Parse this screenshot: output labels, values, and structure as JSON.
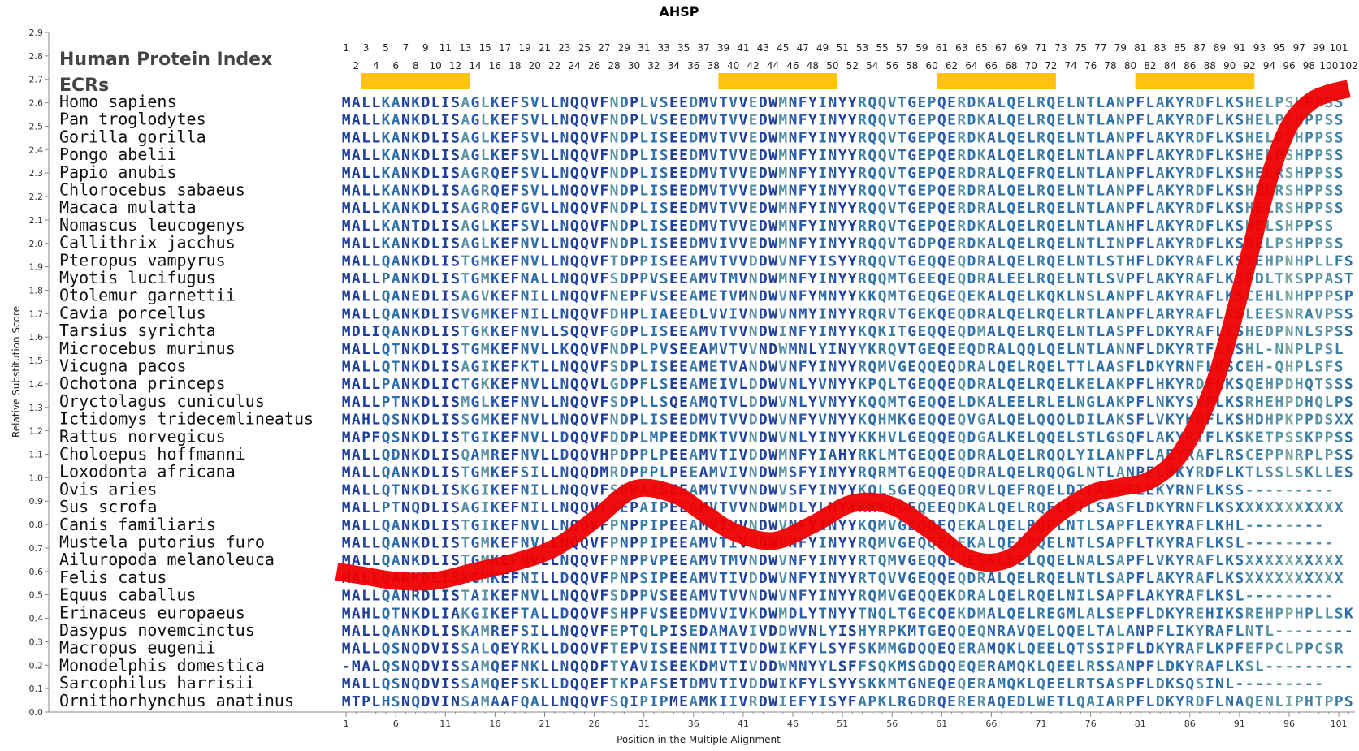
{
  "chart_data": {
    "type": "line",
    "title": "AHSP",
    "xlabel": "Position in the Multiple Alignment",
    "ylabel": "Relative Substitution Score",
    "xlim": [
      0,
      102
    ],
    "ylim": [
      0.0,
      2.9
    ],
    "yticks": [
      "0.0",
      "0.1",
      "0.2",
      "0.3",
      "0.4",
      "0.5",
      "0.6",
      "0.7",
      "0.8",
      "0.9",
      "1.0",
      "1.1",
      "1.2",
      "1.3",
      "1.4",
      "1.5",
      "1.6",
      "1.7",
      "1.8",
      "1.9",
      "2.0",
      "2.1",
      "2.2",
      "2.3",
      "2.4",
      "2.5",
      "2.6",
      "2.7",
      "2.8",
      "2.9"
    ],
    "xticks": [
      "1",
      "6",
      "11",
      "16",
      "21",
      "26",
      "31",
      "36",
      "41",
      "46",
      "51",
      "56",
      "61",
      "66",
      "71",
      "76",
      "81",
      "86",
      "91",
      "96",
      "101"
    ],
    "grid": false,
    "header_labels": [
      "Human Protein Index",
      "ECRs"
    ],
    "position_numbers_odd": [
      "1",
      "3",
      "5",
      "7",
      "9",
      "11",
      "13",
      "15",
      "17",
      "19",
      "21",
      "23",
      "25",
      "27",
      "29",
      "31",
      "33",
      "35",
      "37",
      "39",
      "41",
      "43",
      "45",
      "47",
      "49",
      "51",
      "53",
      "55",
      "57",
      "59",
      "61",
      "63",
      "65",
      "67",
      "69",
      "71",
      "73",
      "75",
      "77",
      "79",
      "81",
      "83",
      "85",
      "87",
      "89",
      "91",
      "93",
      "95",
      "97",
      "99",
      "101"
    ],
    "position_numbers_even": [
      "2",
      "4",
      "6",
      "8",
      "10",
      "12",
      "14",
      "16",
      "18",
      "20",
      "22",
      "24",
      "26",
      "28",
      "30",
      "32",
      "34",
      "36",
      "38",
      "40",
      "42",
      "44",
      "46",
      "48",
      "50",
      "52",
      "54",
      "56",
      "58",
      "60",
      "62",
      "64",
      "66",
      "68",
      "70",
      "72",
      "74",
      "76",
      "78",
      "80",
      "82",
      "84",
      "86",
      "88",
      "90",
      "92",
      "94",
      "96",
      "98",
      "100",
      "102"
    ],
    "ecr_regions": [
      [
        3,
        13
      ],
      [
        39,
        50
      ],
      [
        61,
        72
      ],
      [
        81,
        92
      ]
    ],
    "series": [
      {
        "x": [
          0,
          3,
          6,
          10,
          14,
          18,
          22,
          26,
          30,
          34,
          37,
          40,
          44,
          48,
          52,
          56,
          60,
          64,
          68,
          72,
          76,
          79,
          82,
          85,
          88,
          90,
          92,
          94,
          96,
          98,
          100,
          102
        ],
        "values": [
          0.6,
          0.58,
          0.56,
          0.56,
          0.6,
          0.64,
          0.7,
          0.82,
          0.95,
          0.93,
          0.85,
          0.77,
          0.73,
          0.8,
          0.89,
          0.88,
          0.77,
          0.65,
          0.66,
          0.82,
          0.93,
          0.96,
          0.99,
          1.1,
          1.35,
          1.62,
          1.95,
          2.28,
          2.5,
          2.6,
          2.64,
          2.66
        ]
      }
    ],
    "species": [
      "Homo sapiens",
      "Pan troglodytes",
      "Gorilla gorilla",
      "Pongo abelii",
      "Papio anubis",
      "Chlorocebus sabaeus",
      "Macaca mulatta",
      "Nomascus leucogenys",
      "Callithrix jacchus",
      "Pteropus vampyrus",
      "Myotis lucifugus",
      "Otolemur garnettii",
      "Cavia porcellus",
      "Tarsius syrichta",
      "Microcebus murinus",
      "Vicugna pacos",
      "Ochotona princeps",
      "Oryctolagus cuniculus",
      "Ictidomys tridecemlineatus",
      "Rattus norvegicus",
      "Choloepus hoffmanni",
      "Loxodonta africana",
      "Ovis aries",
      "Sus scrofa",
      "Canis familiaris",
      "Mustela putorius furo",
      "Ailuropoda melanoleuca",
      "Felis catus",
      "Equus caballus",
      "Erinaceus europaeus",
      "Dasypus novemcinctus",
      "Macropus eugenii",
      "Monodelphis domestica",
      "Sarcophilus harrisii",
      "Ornithorhynchus anatinus"
    ],
    "sequences": [
      "MALLKANKDLISAGLKEFSVLLNQQVFNDPLVSEEDMVTVVEDWMNFYINYYRQQVTGEPQERDKALQELRQELNTLANPFLAKYRDFLKSHELPSHPPSS",
      "MALLKANKDLISAGLKEFSVLLNQQVFNDPLVSEEDMVTVVEDWMNFYINYYRQQVTGEPQERDKALQELRQELNTLANPFLAKYRDFLKSHELPSHPPSS",
      "MALLKANKDLISAGLKEFSVLLNQQVFNDPLISEEDMVTVVEDWMNFYINYYRQQVTGEPQERDKALQELRQELNTLANPFLAKYRDFLKSHELPSHPPSS",
      "MALLKANKDLISAGLKEFSVLLNQQVFNDPLISEEDMVTVVEDWMNFYINYYRQQVTGEPQERDKALQELRQELNTLANPFLAKYRDFLKSHELPSHPPSS",
      "MALLKANKDLISAGRQEFSVLLNQQVFNDPLISEEDMVTVVEDWMNFYINYYRQQVTGEPQERDRALQEFRQELNTLANPFLAKYRDFLKSHELRSHPPSS",
      "MALLKANKDLISAGRQEFSVLLNQQVFNDPLISEEDMVTVVEDWMNFYINYYRQQVTGEPQERDRALQELRQELNTLANPFLAKYRDFLKSHELRSHPPSS",
      "MALLKANKDLISAGRQEFGVLLNQQVFNDPLISEEDMVTVVEDWMNFYINYYRQQVTGEPQERDRALQELRQELNTLANPFLAKYRDFLKSHELRSHPPSS",
      "MALLKANTDLISAGLKEFSVLLNQQVFNDPLISEEDMVTVVEDWMNFYINYYRRQVTGEPQERDKALQELRQELNTLANHFLAKYRDFLKSHELSHPPSS",
      "MALLKANKDLISAGLKEFNVLLNQQVFNDPLISEEDMVIVVEDWMNFYINYYRQQVTGDPQERDKALQELRQELNTLINPFLAKYRDFLKSRELPSHPPSS",
      "MALLQANKDLISTGMKEFNVLLNQQVFTDPPISEEAMVTVVDDWVNFYISYYRQQVTGEQQEQDRALQELRQELNTLSTHFLDKYRAFLKSYEHPNHPLLFS",
      "MALLPANKDLISTGMKEFNALLNQQVFSDPPVSEEAMVTMVNDWMNFYINYYRQQMTGEEQEQDRALEELRQELNTLSVPFLAKYRAFLKSFDLTKSPPAST",
      "MALLQANEDLISAGVKEFNILLNQQVFNEPFVSEEAMETVMNDWVNFYMNYYKKQMTGEQGEQEKALQELKQKLNSLANPFLAKYRAFLKSCEHLNHPPPSP",
      "MALLQANKDLISVGMKEFNILLNQQVFDHPLIAEEDLVVIVNDWVNMYINYYRQRVTGEKQEQDRALQELRQELRTLANPFLARYRAFLKSLEESNRAVPSS",
      "MDLIQANKDLISTGKKEFNVLLSQQVFGDPLISEEAMVTVVNDWINFYINYYKQKITGEQQEQDMALQELRQELNTLASPFLDKYRAFLKSHEDPNNLSPSS",
      "MALLQTNKDLISTGMKEFNVLLKQQVFNDPLPVSEEAMVTVVNDWMNLYINYYKRQVTGEQEEQDRALQQLQELNTLANNFLDKYRTFLKSHL-NNPLPSL",
      "MALLQTNKDLISAGIKEFKTLLNQQVFSDPLISEEAMETVANDWVNFYINYYRQMVGEQQEQDRALQELRQELTTLAASFLDKYRNFLKSCEH-QHPLSFS",
      "MALLPANKDLICTGKKEFNVLLNQQVLGDPFLSEEAMEIVLDDWVNLYVNYYKPQLTGEQQEQDRALQELRQELKELAKPFLHKYRDFLKSQEHPDHQTSSS",
      "MALLPTNKDLISMGLKEFNVLLNQQVFSDPLLSQEAMQTVLDDWVNLYVNYYKQQMTGEQQELDKALEELRLELNGLAKPFLNKYSVFLKSRHEHPDHQLPSS",
      "MAHLQSNKDLISSGMKEFNVLLNQQVFNDPLISEEDMVTVVDDWVNFYVNYYKQHMKGEQQEQVGALQELQQQLDILAKSFLVKYKDFLKSHDHPKPPDSXX",
      "MAPFQSNKDLISTGIKEFNVLLDQQVFDDPLMPEEDMKTVVNDWVNLYINYYKKHVLGEQQEQDGALKELQQELSTLGSQFLAKYRTFLKSKETPSSKPPSS",
      "MALLQDNKDLISQAMREFNVLLDQQVHPDPPLPEEAMVTIVDDWMNFYIAHYRKLMTGEQQEQDRALQELRQQLYILANPFLAEYRAFLRSCEPPNRPLPSS",
      "MALLQANKDLISTGMKEFSILLNQQDMRDPPPLPEEAMVIVNDWMSFYINYYRQRMTGEQQEQDRALQELRQQGLNTLANPFLDKYRDFLKTLSSLSKLLESS",
      "MALLQTNKDLISKGIKEFNILLNQQVFSDPAISEEAMVTVVNDWVSFYINYYKQLSGEQQEQDRVLQEFRQELDTLASPFLEKYRNFLKSS---------",
      "MALLPTNQDLISAGIKEFNILLNQQVFSEPAIPEEAMVTVVNDWMDLYLNYYKKMVGEQEEQDKALQELRQELNTLSASFLDKYRNFLKSXXXXXXXXXXX",
      "MALLQANKDLISTGIKEFNVLLNQQVFPNPPIPEEAMVTVVNDWVNFYINYYKQMVGEQQEQEKALQELRQELNTLSAPFLEKYRAFLKHL--------",
      "MALLQANKDLISTGMKEFNVLLNQQVFPNPPIPEEAMVTIVDDWVNFYINYYRQMVGEQQEQEKALQELRQELNTLSAPFLTKYRAFLKSL---------",
      "MALLQANKDLISTGMKEFNVLLNQQVFPNPPVPEEAMVTMVNDWVNFYINYYRTQMVGEQQEQESALRELQQELNALSAPFLVKYRAFLKSXXXXXXXXXX",
      "MALLQANKDLISKGMKEFNILLDQQVFPNPSIPEEAMVTIVDDWVNFYINYYRTQVVGEQQEQDRALQELRQELNTLSAPFLAKYRAFLKSXXXXXXXXXX",
      "MALLQANRDLISTAIKEFNVLLNQQVFSDPPVSEEAMVTVVNDWVNFYINYYRQMVGEQQEKDRALQELRQELNILSAPFLAKYRAFLKSL---------",
      "MAHLQTNKDLIAKGIKEFTALLDQQVFSHPFVSEEDMVVIVKDWMDLYTNYYTNQLTGECQEKDMALQELREGMLALSEPFLDKYREHIKSREHPPHPLLSK",
      "MALLQANKDLISKAMREFSILLNQQVFEPTQLPISEDAMAVIVDDWVNLYISHYRPKMTGEQQEQNRAVQELQQELTALANPFLIKYRAFLNTL--------",
      "MALLQSNQDVISSALQEYRKLLDQQVFTEPVISEENMITIVDDWIKFYLSYFSKMMGDQQEQERAMQKLQEELQTSSIPFLDKYRAFLKPFEFPCLPPCSR",
      "-MALQSNQDVISSAMQEFNKLLNQQDFTYAVISEEKDMVTIVDDWMNYYLSFFSQKMSGDQQEQERAMQKLQEELRSSANPFLDKYRAFLKSL---------",
      "MALLQSNQDVISSAMQEFSKLLDQQEFTKPAFSETDMVTIVDDWIKFYLSYYSKKMTGNEQEQERAMQKLQEELRTSASPFLDKSQSINL---------",
      "MTPLHSNQDVINSAMAAFQALLNQQVFSQIPIPMEAMKIIVRDWIEFYISYFAPKLRGDRQERERAQEDLWETLQAIARPFLDKYRDFLNAQENLIPHTPPS"
    ]
  }
}
